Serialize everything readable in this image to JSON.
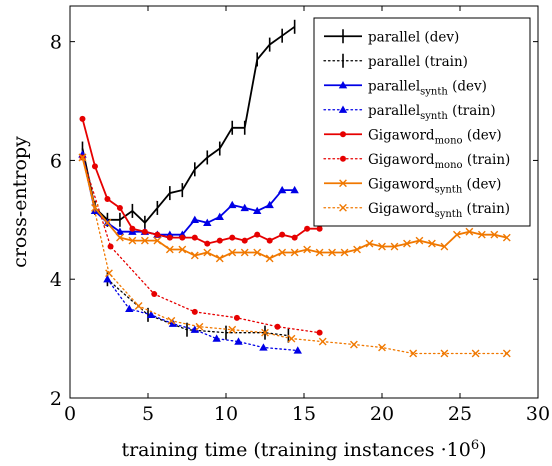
{
  "chart_data": {
    "type": "line",
    "xlabel": "training time (training instances ·10",
    "xlabel_sup": "6",
    "xlabel_end": ")",
    "ylabel": "cross-entropy",
    "xlim": [
      0,
      30
    ],
    "ylim": [
      2,
      8.6
    ],
    "xticks": [
      0,
      5,
      10,
      15,
      20,
      25,
      30
    ],
    "yticks": [
      2,
      4,
      6,
      8
    ],
    "grid": false,
    "legend_position": "top-right",
    "series": [
      {
        "name": "parallel (dev)",
        "legend": {
          "main": "parallel",
          "sub": "",
          "tail": " (dev)"
        },
        "color": "#000000",
        "dash": "solid",
        "marker": "bar",
        "x": [
          0.8,
          1.6,
          2.4,
          3.2,
          4.0,
          4.8,
          5.6,
          6.4,
          7.2,
          8.0,
          8.8,
          9.6,
          10.4,
          11.2,
          12.0,
          12.8,
          13.6,
          14.4
        ],
        "y": [
          6.2,
          5.2,
          5.0,
          5.0,
          5.15,
          4.95,
          5.2,
          5.45,
          5.5,
          5.85,
          6.05,
          6.2,
          6.55,
          6.55,
          7.7,
          7.95,
          8.1,
          8.25
        ]
      },
      {
        "name": "parallel (train)",
        "legend": {
          "main": "parallel",
          "sub": "",
          "tail": " (train)"
        },
        "color": "#000000",
        "dash": "dotted",
        "marker": "bar",
        "x": [
          2.4,
          5.0,
          7.5,
          10.0,
          12.5,
          14.0
        ],
        "y": [
          4.0,
          3.4,
          3.15,
          3.1,
          3.1,
          3.05
        ]
      },
      {
        "name": "parallelsynth (dev)",
        "legend": {
          "main": "parallel",
          "sub": "synth",
          "tail": " (dev)"
        },
        "color": "#0000e6",
        "dash": "solid",
        "marker": "triangle",
        "x": [
          0.8,
          1.6,
          2.4,
          3.2,
          4.0,
          4.8,
          5.6,
          6.4,
          7.2,
          8.0,
          8.8,
          9.6,
          10.4,
          11.2,
          12.0,
          12.8,
          13.6,
          14.4
        ],
        "y": [
          6.1,
          5.15,
          4.95,
          4.8,
          4.8,
          4.8,
          4.75,
          4.75,
          4.75,
          5.0,
          4.95,
          5.05,
          5.25,
          5.2,
          5.15,
          5.25,
          5.5,
          5.5
        ]
      },
      {
        "name": "parallelsynth (train)",
        "legend": {
          "main": "parallel",
          "sub": "synth",
          "tail": " (train)"
        },
        "color": "#0000e6",
        "dash": "dotted",
        "marker": "triangle",
        "x": [
          2.4,
          3.8,
          5.2,
          6.6,
          8.0,
          9.4,
          10.8,
          12.4,
          14.6
        ],
        "y": [
          4.0,
          3.5,
          3.4,
          3.25,
          3.15,
          3.0,
          2.95,
          2.85,
          2.8
        ]
      },
      {
        "name": "Gigawordmono (dev)",
        "legend": {
          "main": "Gigaword",
          "sub": "mono",
          "tail": " (dev)"
        },
        "color": "#e60000",
        "dash": "solid",
        "marker": "circle",
        "x": [
          0.8,
          1.6,
          2.4,
          3.2,
          4.0,
          4.8,
          5.6,
          6.4,
          7.2,
          8.0,
          8.8,
          9.6,
          10.4,
          11.2,
          12.0,
          12.8,
          13.6,
          14.4,
          15.2,
          16.0
        ],
        "y": [
          6.7,
          5.9,
          5.35,
          5.2,
          4.85,
          4.8,
          4.75,
          4.7,
          4.7,
          4.7,
          4.6,
          4.65,
          4.7,
          4.65,
          4.75,
          4.65,
          4.75,
          4.7,
          4.85,
          4.85
        ]
      },
      {
        "name": "Gigawordmono (train)",
        "legend": {
          "main": "Gigaword",
          "sub": "mono",
          "tail": " (train)"
        },
        "color": "#e60000",
        "dash": "dotted",
        "marker": "circle",
        "x": [
          0.8,
          2.6,
          5.4,
          8.0,
          10.7,
          13.3,
          16.0
        ],
        "y": [
          6.05,
          4.55,
          3.75,
          3.45,
          3.35,
          3.2,
          3.1
        ]
      },
      {
        "name": "Gigawordsynth (dev)",
        "legend": {
          "main": "Gigaword",
          "sub": "synth",
          "tail": " (dev)"
        },
        "color": "#f07800",
        "dash": "solid",
        "marker": "x",
        "x": [
          0.8,
          1.6,
          2.4,
          3.2,
          4.0,
          4.8,
          5.6,
          6.4,
          7.2,
          8.0,
          8.8,
          9.6,
          10.4,
          11.2,
          12.0,
          12.8,
          13.6,
          14.4,
          15.2,
          16.0,
          16.8,
          17.6,
          18.4,
          19.2,
          20.0,
          20.8,
          21.6,
          22.4,
          23.2,
          24.0,
          24.8,
          25.6,
          26.4,
          27.2,
          28.0
        ],
        "y": [
          6.05,
          5.2,
          4.95,
          4.7,
          4.65,
          4.65,
          4.65,
          4.5,
          4.5,
          4.4,
          4.45,
          4.35,
          4.45,
          4.45,
          4.45,
          4.35,
          4.45,
          4.45,
          4.5,
          4.45,
          4.45,
          4.45,
          4.5,
          4.6,
          4.55,
          4.55,
          4.6,
          4.65,
          4.6,
          4.55,
          4.75,
          4.8,
          4.75,
          4.75,
          4.7
        ]
      },
      {
        "name": "Gigawordsynth (train)",
        "legend": {
          "main": "Gigaword",
          "sub": "synth",
          "tail": " (train)"
        },
        "color": "#f07800",
        "dash": "dotted",
        "marker": "x",
        "x": [
          0.8,
          2.5,
          4.4,
          6.5,
          8.3,
          10.4,
          12.5,
          14.2,
          16.2,
          18.2,
          20.0,
          22.0,
          24.0,
          26.0,
          28.0
        ],
        "y": [
          6.05,
          4.1,
          3.55,
          3.3,
          3.2,
          3.15,
          3.1,
          3.0,
          2.95,
          2.9,
          2.85,
          2.75,
          2.75,
          2.75,
          2.75
        ]
      }
    ]
  }
}
